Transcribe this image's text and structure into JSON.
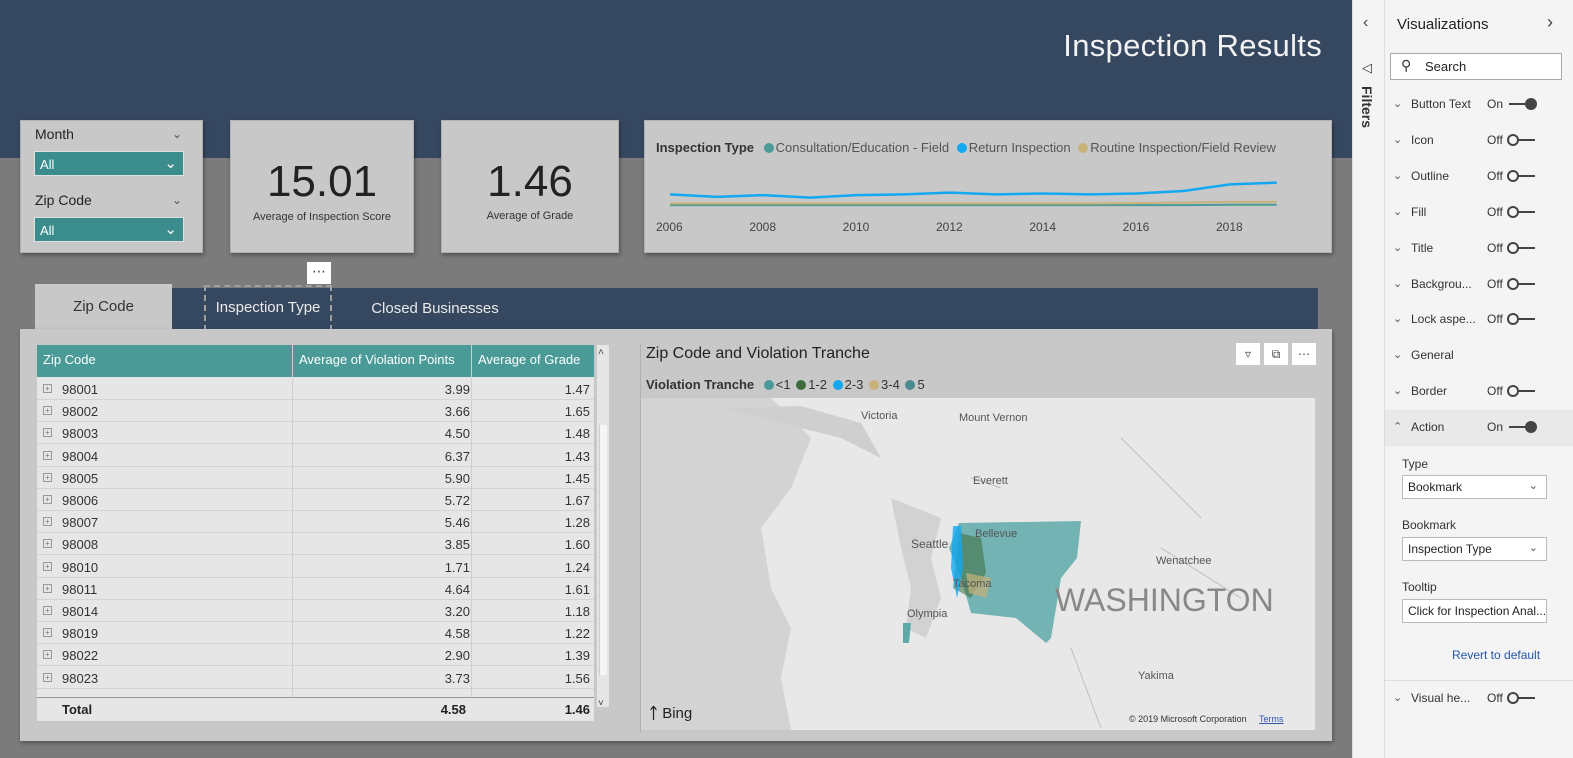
{
  "header": {
    "title": "Inspection Results"
  },
  "slicers": {
    "month": {
      "label": "Month",
      "value": "All"
    },
    "zip": {
      "label": "Zip Code",
      "value": "All"
    }
  },
  "kpis": [
    {
      "value": "15.01",
      "label": "Average of Inspection Score"
    },
    {
      "value": "1.46",
      "label": "Average of Grade"
    }
  ],
  "line_chart": {
    "legend_title": "Inspection Type",
    "series": [
      {
        "name": "Consultation/Education - Field",
        "color": "#4a9a98"
      },
      {
        "name": "Return Inspection",
        "color": "#13a8f0"
      },
      {
        "name": "Routine Inspection/Field Review",
        "color": "#c8b27a"
      }
    ],
    "x_ticks": [
      "2006",
      "2008",
      "2010",
      "2012",
      "2014",
      "2016",
      "2018"
    ]
  },
  "chart_data": {
    "type": "line",
    "x": [
      2006,
      2007,
      2008,
      2009,
      2010,
      2011,
      2012,
      2013,
      2014,
      2015,
      2016,
      2017,
      2018,
      2019
    ],
    "series": [
      {
        "name": "Consultation/Education - Field",
        "values": [
          1.3,
          1.3,
          1.3,
          1.3,
          1.3,
          1.3,
          1.3,
          1.3,
          1.3,
          1.3,
          1.3,
          1.3,
          1.35,
          1.35
        ]
      },
      {
        "name": "Return Inspection",
        "values": [
          2.6,
          2.3,
          2.5,
          2.2,
          2.5,
          2.6,
          2.8,
          2.6,
          2.7,
          2.6,
          2.7,
          3.0,
          3.8,
          4.0
        ]
      },
      {
        "name": "Routine Inspection/Field Review",
        "values": [
          1.5,
          1.5,
          1.5,
          1.5,
          1.5,
          1.5,
          1.5,
          1.5,
          1.5,
          1.5,
          1.55,
          1.6,
          1.7,
          1.7
        ]
      }
    ],
    "xlabel": "",
    "ylabel": "",
    "ylim": [
      0,
      6
    ]
  },
  "tabs": [
    "Zip Code",
    "Inspection Type",
    "Closed Businesses"
  ],
  "table": {
    "headers": [
      "Zip Code",
      "Average of Violation Points",
      "Average of Grade"
    ],
    "rows": [
      [
        "98001",
        "3.99",
        "1.47"
      ],
      [
        "98002",
        "3.66",
        "1.65"
      ],
      [
        "98003",
        "4.50",
        "1.48"
      ],
      [
        "98004",
        "6.37",
        "1.43"
      ],
      [
        "98005",
        "5.90",
        "1.45"
      ],
      [
        "98006",
        "5.72",
        "1.67"
      ],
      [
        "98007",
        "5.46",
        "1.28"
      ],
      [
        "98008",
        "3.85",
        "1.60"
      ],
      [
        "98010",
        "1.71",
        "1.24"
      ],
      [
        "98011",
        "4.64",
        "1.61"
      ],
      [
        "98014",
        "3.20",
        "1.18"
      ],
      [
        "98019",
        "4.58",
        "1.22"
      ],
      [
        "98022",
        "2.90",
        "1.39"
      ],
      [
        "98023",
        "3.73",
        "1.56"
      ]
    ],
    "total": {
      "label": "Total",
      "points": "4.58",
      "grade": "1.46"
    }
  },
  "map": {
    "title": "Zip Code and Violation Tranche",
    "legend_title": "Violation Tranche",
    "legend": [
      {
        "name": "<1",
        "color": "#4a9a98"
      },
      {
        "name": "1-2",
        "color": "#3d6b3a"
      },
      {
        "name": "2-3",
        "color": "#13a8f0"
      },
      {
        "name": "3-4",
        "color": "#c8b27a"
      },
      {
        "name": "5",
        "color": "#4a8a90"
      }
    ],
    "places": [
      "Victoria",
      "Mount Vernon",
      "Everett",
      "Seattle",
      "Bellevue",
      "Tacoma",
      "Olympia",
      "Wenatchee",
      "Yakima"
    ],
    "region_label": "WASHINGTON",
    "bing": "Bing",
    "copyright": "© 2019 Microsoft Corporation",
    "terms": "Terms"
  },
  "sidepanel": {
    "filters_label": "Filters",
    "title": "Visualizations",
    "search_placeholder": "Search",
    "props": [
      {
        "label": "Button Text",
        "value": "On",
        "state": "on"
      },
      {
        "label": "Icon",
        "value": "Off",
        "state": "off"
      },
      {
        "label": "Outline",
        "value": "Off",
        "state": "off"
      },
      {
        "label": "Fill",
        "value": "Off",
        "state": "off"
      },
      {
        "label": "Title",
        "value": "Off",
        "state": "off"
      },
      {
        "label": "Backgrou...",
        "value": "Off",
        "state": "off"
      },
      {
        "label": "Lock aspe...",
        "value": "Off",
        "state": "off"
      },
      {
        "label": "General",
        "value": "",
        "state": "none"
      },
      {
        "label": "Border",
        "value": "Off",
        "state": "off"
      },
      {
        "label": "Action",
        "value": "On",
        "state": "on"
      }
    ],
    "action": {
      "type_label": "Type",
      "type_value": "Bookmark",
      "bookmark_label": "Bookmark",
      "bookmark_value": "Inspection Type",
      "tooltip_label": "Tooltip",
      "tooltip_value": "Click for Inspection Anal...",
      "revert": "Revert to default"
    },
    "visual_header": {
      "label": "Visual he...",
      "value": "Off"
    }
  }
}
